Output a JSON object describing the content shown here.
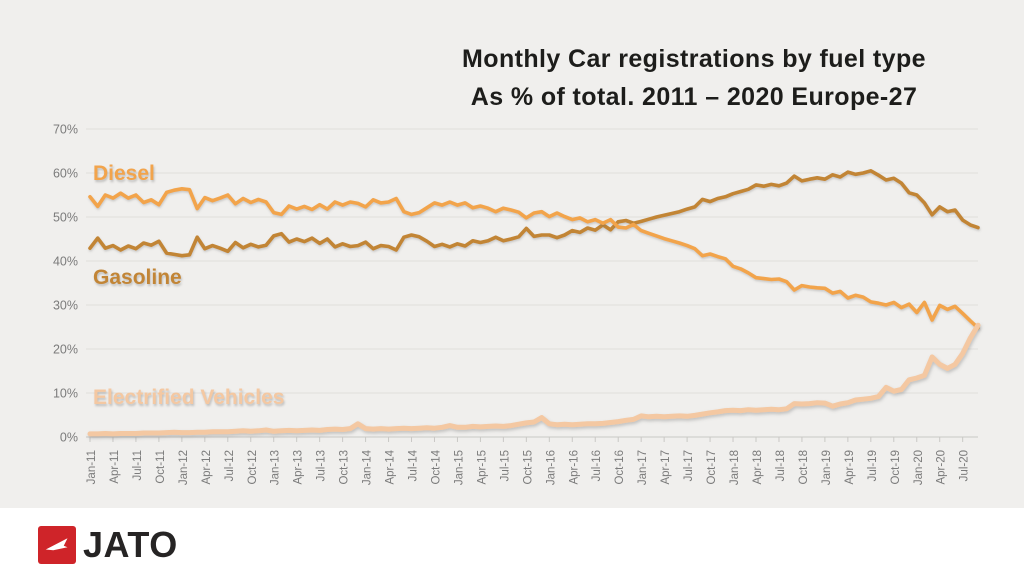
{
  "panel": {
    "background": "#f0efed"
  },
  "title": {
    "line1": "Monthly Car registrations by fuel type",
    "line2": "As % of total. 2011 – 2020 Europe-27",
    "color": "#1d1d1b"
  },
  "axis": {
    "text_color": "#7b7b7b",
    "grid_color": "#e0dfdc",
    "line_color": "#c9c8c5"
  },
  "footer": {
    "brand": "JATO",
    "logo_color": "#cf2429"
  },
  "chart_data": {
    "type": "line",
    "title": "Monthly Car registrations by fuel type",
    "subtitle": "As % of total. 2011 – 2020 Europe-27",
    "x_frequency": "monthly",
    "x_start": "Jan-11",
    "x_end": "Sep-20",
    "x_tick_interval_months": 3,
    "x_tick_labels": [
      "Jan-11",
      "Apr-11",
      "Jul-11",
      "Oct-11",
      "Jan-12",
      "Apr-12",
      "Jul-12",
      "Oct-12",
      "Jan-13",
      "Apr-13",
      "Jul-13",
      "Oct-13",
      "Jan-14",
      "Apr-14",
      "Jul-14",
      "Oct-14",
      "Jan-15",
      "Apr-15",
      "Jul-15",
      "Oct-15",
      "Jan-16",
      "Apr-16",
      "Jul-16",
      "Oct-16",
      "Jan-17",
      "Apr-17",
      "Jul-17",
      "Oct-17",
      "Jan-18",
      "Apr-18",
      "Jul-18",
      "Oct-18",
      "Jan-19",
      "Apr-19",
      "Jul-19",
      "Oct-19",
      "Jan-20",
      "Apr-20",
      "Jul-20"
    ],
    "ylim": [
      0,
      70
    ],
    "y_tick_labels": [
      "0%",
      "10%",
      "20%",
      "30%",
      "40%",
      "50%",
      "60%",
      "70%"
    ],
    "grid": true,
    "legend": "inline-labels",
    "series": [
      {
        "name": "Diesel",
        "color": "#F2A44C",
        "values": [
          54.6,
          52.4,
          55.0,
          54.3,
          55.4,
          54.3,
          55.0,
          53.3,
          53.9,
          52.8,
          55.6,
          56.1,
          56.4,
          56.2,
          51.9,
          54.4,
          53.7,
          54.3,
          55.0,
          53.0,
          54.2,
          53.3,
          54.0,
          53.4,
          51.0,
          50.6,
          52.5,
          51.8,
          52.4,
          51.7,
          52.8,
          51.8,
          53.4,
          52.7,
          53.4,
          53.1,
          52.3,
          53.9,
          53.2,
          53.4,
          54.2,
          51.2,
          50.6,
          51.0,
          52.1,
          53.2,
          52.7,
          53.4,
          52.7,
          53.2,
          52.1,
          52.5,
          52.0,
          51.2,
          52.0,
          51.6,
          51.1,
          49.8,
          50.9,
          51.2,
          50.1,
          50.9,
          50.1,
          49.4,
          49.8,
          48.9,
          49.4,
          48.6,
          49.4,
          47.7,
          47.5,
          48.3,
          46.9,
          46.3,
          45.7,
          45.1,
          44.6,
          44.1,
          43.5,
          42.8,
          41.2,
          41.6,
          41.0,
          40.5,
          38.8,
          38.2,
          37.3,
          36.2,
          36.0,
          35.8,
          35.9,
          35.3,
          33.4,
          34.4,
          34.1,
          33.9,
          33.8,
          32.7,
          33.1,
          31.6,
          32.2,
          31.8,
          30.7,
          30.4,
          30.0,
          30.6,
          29.4,
          30.2,
          28.3,
          30.6,
          26.6,
          29.9,
          29.0,
          29.7,
          28.1,
          26.4,
          24.8
        ]
      },
      {
        "name": "Gasoline",
        "color": "#C28536",
        "values": [
          42.9,
          45.2,
          42.9,
          43.5,
          42.5,
          43.4,
          42.8,
          44.1,
          43.6,
          44.5,
          41.8,
          41.5,
          41.2,
          41.4,
          45.4,
          42.8,
          43.5,
          42.9,
          42.2,
          44.2,
          43.0,
          43.8,
          43.2,
          43.6,
          45.7,
          46.2,
          44.3,
          45.0,
          44.4,
          45.2,
          44.0,
          45.0,
          43.2,
          43.9,
          43.3,
          43.5,
          44.3,
          42.8,
          43.5,
          43.3,
          42.5,
          45.4,
          45.9,
          45.5,
          44.5,
          43.3,
          43.8,
          43.2,
          43.9,
          43.4,
          44.6,
          44.2,
          44.6,
          45.4,
          44.6,
          45.0,
          45.5,
          47.4,
          45.6,
          45.9,
          45.9,
          45.3,
          45.9,
          46.9,
          46.5,
          47.5,
          47.0,
          48.2,
          47.1,
          48.9,
          49.2,
          48.6,
          49.0,
          49.5,
          50.0,
          50.4,
          50.8,
          51.2,
          51.8,
          52.3,
          54.0,
          53.5,
          54.2,
          54.6,
          55.3,
          55.8,
          56.3,
          57.3,
          57.0,
          57.4,
          57.1,
          57.7,
          59.3,
          58.2,
          58.6,
          58.9,
          58.6,
          59.6,
          59.1,
          60.2,
          59.7,
          60.0,
          60.5,
          59.5,
          58.4,
          58.8,
          57.7,
          55.5,
          55.0,
          53.2,
          50.5,
          52.3,
          51.2,
          51.6,
          49.3,
          48.2,
          47.6
        ]
      },
      {
        "name": "Electrified Vehicles",
        "color": "#F4C8A2",
        "values": [
          0.7,
          0.7,
          0.8,
          0.7,
          0.8,
          0.8,
          0.8,
          0.9,
          0.9,
          0.9,
          1.0,
          1.1,
          1.0,
          1.0,
          1.1,
          1.1,
          1.2,
          1.2,
          1.2,
          1.3,
          1.4,
          1.3,
          1.4,
          1.6,
          1.3,
          1.4,
          1.5,
          1.4,
          1.5,
          1.6,
          1.5,
          1.7,
          1.8,
          1.7,
          1.9,
          3.0,
          1.9,
          1.8,
          1.9,
          1.8,
          1.9,
          2.0,
          1.9,
          2.0,
          2.1,
          2.0,
          2.2,
          2.6,
          2.2,
          2.2,
          2.4,
          2.3,
          2.4,
          2.5,
          2.4,
          2.6,
          2.9,
          3.2,
          3.4,
          4.4,
          3.0,
          2.8,
          2.9,
          2.8,
          2.9,
          3.0,
          3.0,
          3.1,
          3.3,
          3.5,
          3.8,
          4.0,
          4.8,
          4.6,
          4.7,
          4.6,
          4.7,
          4.8,
          4.7,
          4.9,
          5.2,
          5.5,
          5.7,
          6.0,
          6.1,
          6.0,
          6.2,
          6.1,
          6.2,
          6.3,
          6.2,
          6.4,
          7.6,
          7.5,
          7.6,
          7.8,
          7.7,
          7.0,
          7.5,
          7.8,
          8.4,
          8.6,
          8.8,
          9.2,
          11.3,
          10.4,
          10.8,
          13.0,
          13.4,
          14.0,
          18.2,
          16.5,
          15.6,
          16.5,
          19.0,
          22.5,
          25.4
        ]
      }
    ]
  }
}
